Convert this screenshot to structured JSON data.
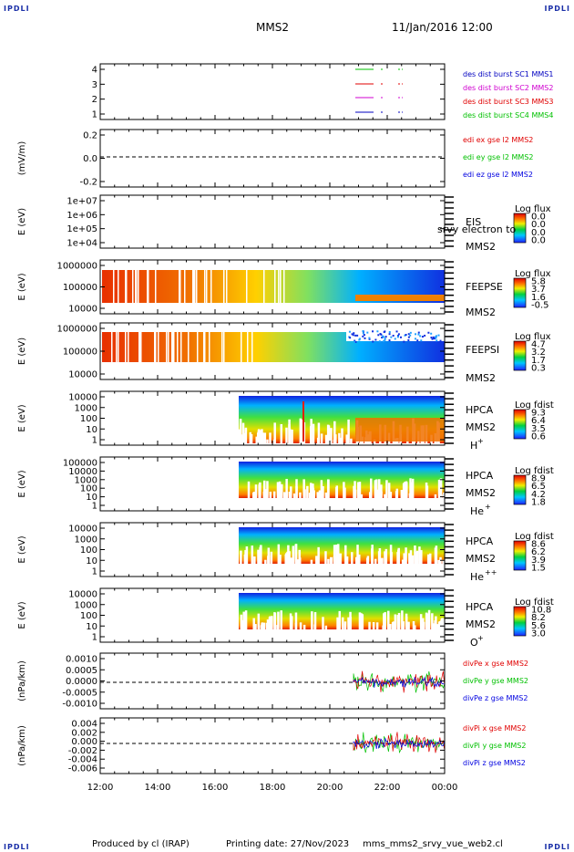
{
  "header": {
    "corner_tl": "IPDLI",
    "corner_tr": "IPDLI",
    "corner_bl": "IPDLI",
    "corner_br": "IPDLI",
    "spacecraft": "MMS2",
    "datetime": "11/Jan/2016 12:00"
  },
  "footer": {
    "produced": "Produced by cl (IRAP)",
    "printing": "Printing date: 27/Nov/2023",
    "file": "mms_mms2_srvy_vue_web2.cl"
  },
  "colors": {
    "red": "#e00000",
    "magenta": "#d000d0",
    "green": "#00c000",
    "blue": "#0000e0"
  },
  "chart_data": {
    "type": "heatmap",
    "x_ticks": [
      "12:00",
      "14:00",
      "16:00",
      "18:00",
      "20:00",
      "22:00",
      "00:00"
    ],
    "panels": [
      {
        "id": "burst",
        "yticks": [
          "4",
          "3",
          "2",
          "1"
        ],
        "legend": [
          {
            "text": "des dist burst SC1 MMS1",
            "color": "#0000c0"
          },
          {
            "text": "des dist burst SC2 MMS2",
            "color": "#d000d0"
          },
          {
            "text": "des dist burst SC3 MMS3",
            "color": "#e00000"
          },
          {
            "text": "des dist burst SC4 MMS4",
            "color": "#00c000"
          }
        ]
      },
      {
        "id": "edi",
        "ylabel": "(mV/m)",
        "yticks": [
          "0.2",
          "0.0",
          "-0.2"
        ],
        "legend": [
          {
            "text": "edi ex gse l2 MMS2",
            "color": "#e00000"
          },
          {
            "text": "edi ey gse l2 MMS2",
            "color": "#00c000"
          },
          {
            "text": "edi ez gse l2 MMS2",
            "color": "#0000e0"
          }
        ]
      },
      {
        "id": "eis",
        "ylabel": "E (eV)",
        "yticks": [
          "1e+07",
          "1e+06",
          "1e+05",
          "1e+04"
        ],
        "labels": [
          "EIS",
          "MMS2"
        ],
        "overlay": "srvy electron to",
        "cb_title": "Log flux",
        "cb_ticks": [
          "0.0",
          "0.0",
          "0.0",
          "0.0"
        ]
      },
      {
        "id": "feepse",
        "ylabel": "E (eV)",
        "yticks": [
          "1000000",
          "100000",
          "10000"
        ],
        "labels": [
          "FEEPSE",
          "MMS2"
        ],
        "cb_title": "Log flux",
        "cb_ticks": [
          "5.8",
          "3.7",
          "1.6",
          "-0.5"
        ]
      },
      {
        "id": "feepsi",
        "ylabel": "E (eV)",
        "yticks": [
          "1000000",
          "100000",
          "10000"
        ],
        "labels": [
          "FEEPSI",
          "MMS2"
        ],
        "cb_title": "Log flux",
        "cb_ticks": [
          "4.7",
          "3.2",
          "1.7",
          "0.3"
        ]
      },
      {
        "id": "hpca_h",
        "ylabel": "E (eV)",
        "yticks": [
          "10000",
          "1000",
          "100",
          "10",
          "1"
        ],
        "labels": [
          "HPCA",
          "MMS2"
        ],
        "species": "H",
        "charge": "+",
        "cb_title": "Log fdist",
        "cb_ticks": [
          "9.3",
          "6.4",
          "3.5",
          "0.6"
        ]
      },
      {
        "id": "hpca_he",
        "ylabel": "E (eV)",
        "yticks": [
          "100000",
          "10000",
          "1000",
          "100",
          "10",
          "1"
        ],
        "labels": [
          "HPCA",
          "MMS2"
        ],
        "species": "He",
        "charge": "+",
        "cb_title": "Log fdist",
        "cb_ticks": [
          "8.9",
          "6.5",
          "4.2",
          "1.8"
        ]
      },
      {
        "id": "hpca_he2",
        "ylabel": "E (eV)",
        "yticks": [
          "10000",
          "1000",
          "100",
          "10",
          "1"
        ],
        "labels": [
          "HPCA",
          "MMS2"
        ],
        "species": "He",
        "charge": "++",
        "cb_title": "Log fdist",
        "cb_ticks": [
          "8.6",
          "6.2",
          "3.9",
          "1.5"
        ]
      },
      {
        "id": "hpca_o",
        "ylabel": "E (eV)",
        "yticks": [
          "10000",
          "1000",
          "100",
          "10",
          "1"
        ],
        "labels": [
          "HPCA",
          "MMS2"
        ],
        "species": "O",
        "charge": "+",
        "cb_title": "Log fdist",
        "cb_ticks": [
          "10.8",
          "8.2",
          "5.6",
          "3.0"
        ]
      },
      {
        "id": "divpe",
        "ylabel": "(nPa/km)",
        "yticks": [
          "0.0010",
          "0.0005",
          "0.0000",
          "-0.0005",
          "-0.0010"
        ],
        "legend": [
          {
            "text": "divPe x gse MMS2",
            "color": "#e00000"
          },
          {
            "text": "divPe y gse MMS2",
            "color": "#00c000"
          },
          {
            "text": "divPe z gse MMS2",
            "color": "#0000e0"
          }
        ]
      },
      {
        "id": "divpi",
        "ylabel": "(nPa/km)",
        "yticks": [
          "0.004",
          "0.002",
          "0.000",
          "-0.002",
          "-0.004",
          "-0.006"
        ],
        "legend": [
          {
            "text": "divPi x gse MMS2",
            "color": "#e00000"
          },
          {
            "text": "divPi y gse MMS2",
            "color": "#00c000"
          },
          {
            "text": "divPi z gse MMS2",
            "color": "#0000e0"
          }
        ]
      }
    ]
  }
}
